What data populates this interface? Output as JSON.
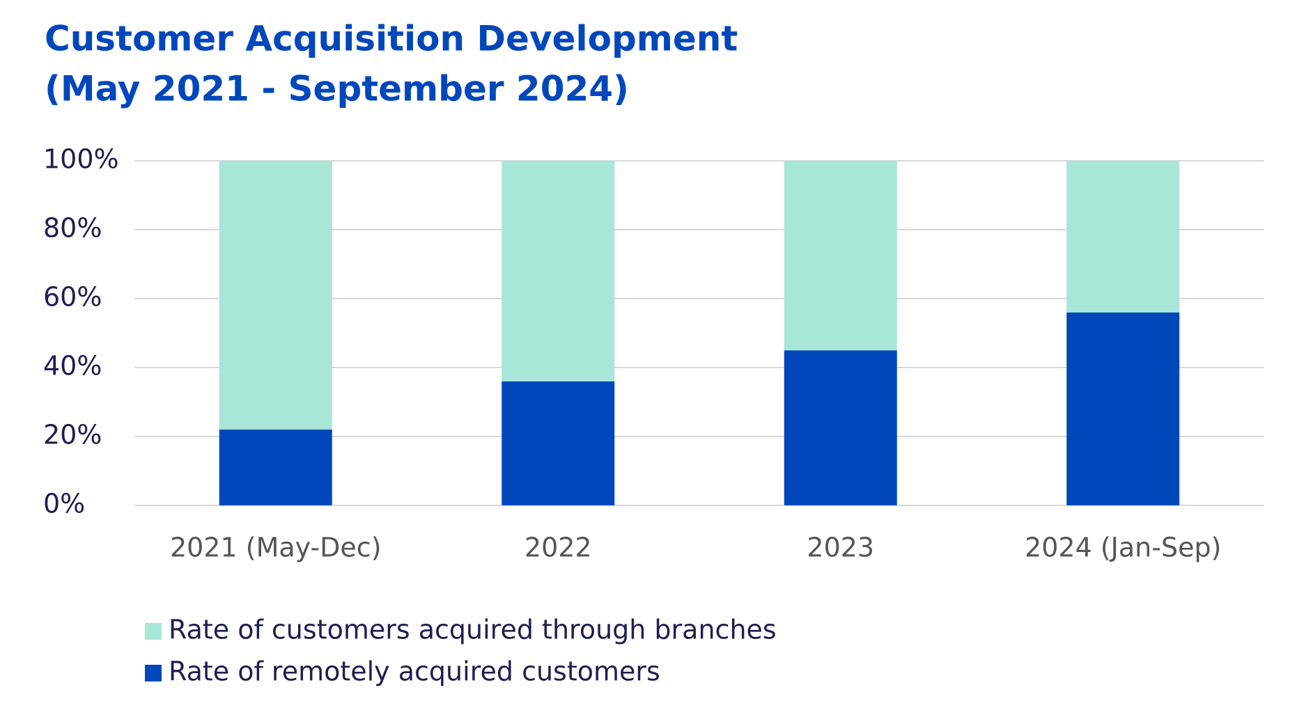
{
  "chart_data": {
    "type": "stacked-bar",
    "title": "Customer Acquisition Development",
    "subtitle": "(May 2021 - September 2024)",
    "categories": [
      "2021 (May-Dec)",
      "2022",
      "2023",
      "2024 (Jan-Sep)"
    ],
    "series": [
      {
        "name": "Rate of customers acquired through branches",
        "color": "#a8e6d7",
        "values": [
          78,
          64,
          55,
          44
        ]
      },
      {
        "name": "Rate of remotely acquired customers",
        "color": "#0047bb",
        "values": [
          22,
          36,
          45,
          56
        ]
      }
    ],
    "ylim": [
      0,
      100
    ],
    "yticks": [
      {
        "value": 0,
        "label": "0%"
      },
      {
        "value": 20,
        "label": "20%"
      },
      {
        "value": 40,
        "label": "40%"
      },
      {
        "value": 60,
        "label": "60%"
      },
      {
        "value": 80,
        "label": "80%"
      },
      {
        "value": 100,
        "label": "100%"
      }
    ],
    "grid": true
  }
}
